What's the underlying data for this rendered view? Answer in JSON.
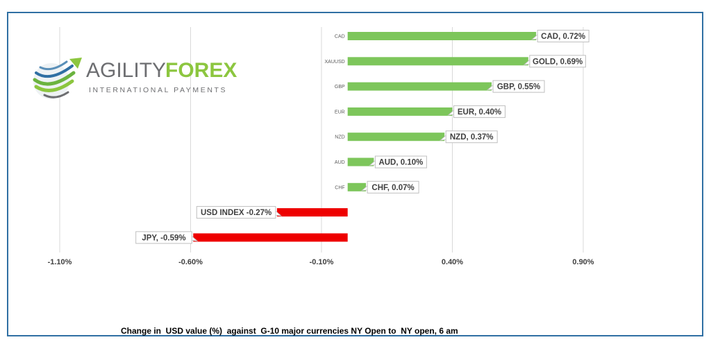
{
  "logo": {
    "word1": "AGILITY",
    "word2": "FOREX",
    "tagline": "INTERNATIONAL PAYMENTS",
    "colors": {
      "grey": "#6d6e71",
      "green": "#8cc63f",
      "blue": "#2f6fa3"
    }
  },
  "caption": "Change in  USD value (%)  against  G-10 major currencies NY Open to  NY open, 6 am",
  "chart_data": {
    "type": "bar",
    "orientation": "horizontal",
    "categories": [
      "CAD",
      "XAUUSD",
      "GBP",
      "EUR",
      "NZD",
      "AUD",
      "CHF",
      "",
      ""
    ],
    "values": [
      0.72,
      0.69,
      0.55,
      0.4,
      0.37,
      0.1,
      0.07,
      -0.27,
      -0.59
    ],
    "data_labels": [
      "CAD, 0.72%",
      "GOLD, 0.69%",
      "GBP, 0.55%",
      "EUR, 0.40%",
      "NZD, 0.37%",
      "AUD, 0.10%",
      "CHF, 0.07%",
      "USD INDEX -0.27%",
      "JPY, -0.59%"
    ],
    "x_ticks": [
      -1.1,
      -0.6,
      -0.1,
      0.4,
      0.9
    ],
    "x_tick_labels": [
      "-1.10%",
      "-0.60%",
      "-0.10%",
      "0.40%",
      "0.90%"
    ],
    "xlim": [
      -1.1,
      0.9
    ],
    "grid": "vertical",
    "colors": {
      "positive": "#7dc65b",
      "negative": "#ee0000",
      "grid": "#d9d9d9",
      "label_border": "#bfbfbf"
    }
  }
}
